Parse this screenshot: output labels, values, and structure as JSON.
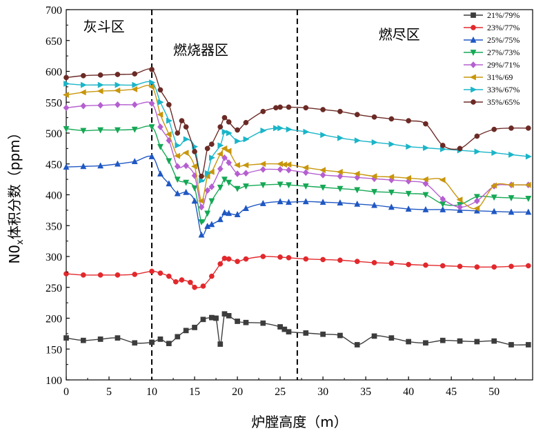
{
  "chart_data": {
    "type": "line",
    "xlabel": "炉膛高度（m）",
    "ylabel": "N0x体积分数（ppm）",
    "ylabel_main": "N0",
    "ylabel_sub": "x",
    "ylabel_rest": "体积分数（ppm）",
    "xlim": [
      0,
      54.5
    ],
    "ylim": [
      100,
      700
    ],
    "x_ticks": [
      0,
      5,
      10,
      15,
      20,
      25,
      30,
      35,
      40,
      45,
      50
    ],
    "y_ticks": [
      100,
      150,
      200,
      250,
      300,
      350,
      400,
      450,
      500,
      550,
      600,
      650,
      700
    ],
    "zone_dividers": [
      10,
      27
    ],
    "zone_labels": [
      {
        "text": "灰斗区",
        "x": 2,
        "y": 665
      },
      {
        "text": "燃烧器区",
        "x": 12.5,
        "y": 627
      },
      {
        "text": "燃尽区",
        "x": 36.5,
        "y": 652
      }
    ],
    "series": [
      {
        "name": "21%/79%",
        "color": "#3c3c3c",
        "marker": "square",
        "x": [
          0,
          2,
          4,
          6,
          8,
          10,
          11,
          12,
          13,
          14,
          15,
          16,
          17,
          17.5,
          18,
          18.5,
          19,
          20,
          21,
          23,
          25,
          25.5,
          26,
          28,
          30,
          32,
          34,
          36,
          38,
          40,
          42,
          44,
          46,
          48,
          50,
          52,
          54
        ],
        "y": [
          168,
          164,
          166,
          168,
          160,
          161,
          166,
          159,
          170,
          180,
          185,
          198,
          201,
          200,
          158,
          207,
          204,
          195,
          193,
          192,
          186,
          182,
          178,
          176,
          174,
          172,
          157,
          171,
          168,
          162,
          160,
          164,
          163,
          162,
          163,
          157,
          157
        ]
      },
      {
        "name": "23%/77%",
        "color": "#e2282c",
        "marker": "circle",
        "x": [
          0,
          2,
          4,
          6,
          8,
          10,
          11,
          12,
          12.8,
          13.5,
          14.5,
          15,
          16,
          17,
          18,
          18.5,
          19,
          20,
          21,
          23,
          25,
          26,
          28,
          30,
          32,
          34,
          36,
          38,
          40,
          42,
          44,
          46,
          48,
          50,
          52,
          54
        ],
        "y": [
          272,
          270,
          270,
          270,
          271,
          276,
          273,
          268,
          259,
          262,
          258,
          250,
          252,
          268,
          288,
          297,
          296,
          292,
          296,
          300,
          299,
          298,
          296,
          295,
          294,
          292,
          290,
          289,
          287,
          286,
          285,
          284,
          283,
          283,
          284,
          285
        ]
      },
      {
        "name": "25%/75%",
        "color": "#1f57c3",
        "marker": "triangle-up",
        "x": [
          0,
          2,
          4,
          6,
          8,
          10,
          11,
          12,
          13,
          14,
          15,
          15.8,
          16.5,
          17,
          18,
          18.5,
          19,
          20,
          21,
          23,
          25,
          26,
          28,
          30,
          32,
          34,
          36,
          38,
          40,
          42,
          44,
          46,
          48,
          50,
          52,
          54
        ],
        "y": [
          445,
          446,
          447,
          450,
          454,
          462,
          434,
          418,
          402,
          404,
          390,
          335,
          349,
          352,
          360,
          371,
          370,
          368,
          378,
          386,
          389,
          388,
          389,
          388,
          387,
          385,
          383,
          380,
          377,
          376,
          376,
          375,
          374,
          373,
          372,
          372
        ]
      },
      {
        "name": "27%/73%",
        "color": "#15a855",
        "marker": "triangle-down",
        "x": [
          0,
          2,
          4,
          6,
          8,
          10,
          11,
          12,
          13,
          14,
          15,
          15.8,
          16.5,
          17,
          18,
          18.5,
          19,
          20,
          21,
          23,
          25,
          26,
          28,
          30,
          32,
          34,
          36,
          38,
          40,
          42,
          44,
          46,
          48,
          50,
          52,
          54
        ],
        "y": [
          507,
          504,
          505,
          505,
          506,
          510,
          478,
          455,
          425,
          420,
          411,
          356,
          370,
          390,
          412,
          425,
          420,
          410,
          414,
          416,
          417,
          416,
          414,
          412,
          410,
          408,
          405,
          404,
          402,
          400,
          385,
          384,
          397,
          396,
          395,
          394
        ]
      },
      {
        "name": "29%/71%",
        "color": "#b55fd0",
        "marker": "diamond",
        "x": [
          0,
          2,
          4,
          6,
          8,
          10,
          11,
          12,
          13,
          14,
          15,
          15.8,
          16.5,
          17,
          18,
          18.5,
          19,
          20,
          21,
          23,
          25,
          26,
          28,
          30,
          32,
          34,
          36,
          38,
          40,
          42,
          44,
          46,
          48,
          50,
          52,
          54
        ],
        "y": [
          541,
          544,
          545,
          546,
          546,
          548,
          510,
          488,
          446,
          447,
          431,
          380,
          407,
          413,
          442,
          460,
          452,
          434,
          435,
          441,
          441,
          440,
          436,
          432,
          430,
          428,
          426,
          424,
          422,
          418,
          393,
          380,
          390,
          414,
          416,
          416
        ]
      },
      {
        "name": "31%/69",
        "color": "#c8960c",
        "marker": "triangle-left",
        "x": [
          0,
          2,
          4,
          6,
          8,
          10,
          11,
          12,
          13,
          14,
          15,
          15.8,
          16.5,
          17,
          18,
          18.5,
          19,
          20,
          21,
          23,
          25,
          25.5,
          26,
          28,
          30,
          32,
          34,
          36,
          38,
          40,
          42,
          44,
          46,
          48,
          50,
          52,
          54
        ],
        "y": [
          562,
          566,
          568,
          569,
          571,
          575,
          530,
          498,
          463,
          468,
          446,
          390,
          430,
          437,
          466,
          475,
          471,
          448,
          448,
          450,
          450,
          449,
          449,
          444,
          440,
          437,
          434,
          430,
          429,
          427,
          425,
          424,
          392,
          378,
          415,
          416,
          416
        ]
      },
      {
        "name": "33%/67%",
        "color": "#1ab5c8",
        "marker": "triangle-right",
        "x": [
          0,
          2,
          4,
          6,
          8,
          10,
          11,
          12,
          13,
          14,
          15,
          15.8,
          16.5,
          17,
          18,
          18.5,
          19,
          20,
          21,
          23,
          24.5,
          25,
          26,
          28,
          30,
          32,
          34,
          36,
          38,
          40,
          42,
          44,
          46,
          48,
          50,
          52,
          54
        ],
        "y": [
          580,
          578,
          578,
          578,
          578,
          582,
          550,
          520,
          480,
          490,
          478,
          423,
          435,
          460,
          480,
          502,
          500,
          487,
          490,
          504,
          508,
          508,
          506,
          502,
          497,
          492,
          488,
          485,
          482,
          478,
          476,
          474,
          472,
          470,
          468,
          465,
          462
        ]
      },
      {
        "name": "35%/65%",
        "color": "#6b2a25",
        "marker": "circle",
        "x": [
          0,
          2,
          4,
          6,
          8,
          10,
          11,
          12,
          13,
          13.5,
          14,
          15,
          15.8,
          16.5,
          17,
          18,
          18.5,
          19,
          20,
          21,
          23,
          24.5,
          25,
          26,
          28,
          30,
          32,
          34,
          36,
          38,
          40,
          42,
          44,
          46,
          48,
          50,
          52,
          54
        ],
        "y": [
          590,
          593,
          594,
          595,
          596,
          603,
          570,
          546,
          500,
          520,
          510,
          470,
          430,
          475,
          482,
          510,
          525,
          518,
          505,
          517,
          535,
          541,
          542,
          542,
          541,
          538,
          535,
          530,
          526,
          523,
          520,
          515,
          480,
          475,
          495,
          506,
          508,
          508
        ]
      }
    ]
  }
}
